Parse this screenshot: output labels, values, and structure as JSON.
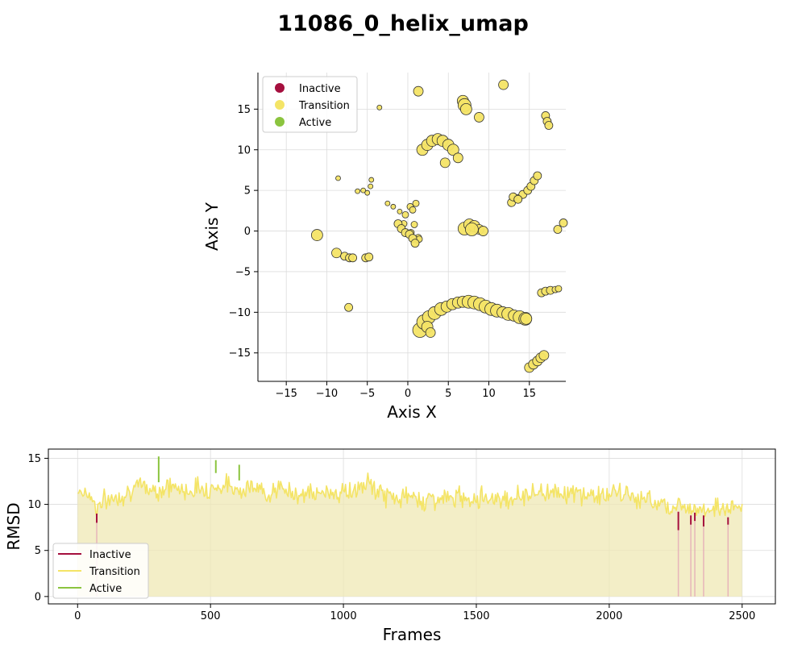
{
  "title": "11086_0_helix_umap",
  "colors": {
    "inactive": "#a50f3e",
    "transition": "#f4e466",
    "active": "#8bc43f",
    "fill": "#efe8b4",
    "point_edge": "#333333"
  },
  "chart_data": [
    {
      "type": "scatter",
      "title": "",
      "xlabel": "Axis X",
      "ylabel": "Axis Y",
      "xlim": [
        -18.5,
        19.5
      ],
      "ylim": [
        -18.5,
        19.5
      ],
      "xticks": [
        -15,
        -10,
        -5,
        0,
        5,
        10,
        15
      ],
      "yticks": [
        -15,
        -10,
        -5,
        0,
        5,
        10,
        15
      ],
      "grid": true,
      "legend": {
        "position": "top-left",
        "entries": [
          "Inactive",
          "Transition",
          "Active"
        ]
      },
      "clusters": [
        {
          "x": [
            1.5,
            2.0,
            2.6,
            3.3,
            4.1,
            4.8,
            5.5,
            6.2,
            6.8,
            7.5,
            8.2,
            8.9,
            9.6,
            10.3,
            11.0,
            11.7,
            12.4,
            13.1,
            13.8,
            14.5,
            2.4,
            2.8
          ],
          "y": [
            -12.2,
            -11.2,
            -10.6,
            -10.1,
            -9.6,
            -9.3,
            -9.0,
            -8.8,
            -8.7,
            -8.7,
            -8.8,
            -9.0,
            -9.3,
            -9.6,
            -9.8,
            -10.0,
            -10.2,
            -10.4,
            -10.6,
            -10.8,
            -11.8,
            -12.5
          ],
          "s": [
            9,
            9,
            8,
            8,
            8,
            7,
            7,
            7,
            7,
            8,
            8,
            8,
            8,
            8,
            8,
            7,
            8,
            7,
            8,
            8,
            7,
            6
          ]
        },
        {
          "x": [
            1.8,
            2.4,
            3.0,
            3.7,
            4.3,
            5.0,
            5.6,
            6.2,
            4.6
          ],
          "y": [
            10.0,
            10.6,
            11.1,
            11.3,
            11.1,
            10.6,
            10.0,
            9.0,
            8.4
          ],
          "s": [
            7,
            7,
            7,
            7,
            7,
            7,
            7,
            6,
            6
          ]
        },
        {
          "x": [
            6.8,
            7.0,
            7.2,
            8.8,
            1.3,
            11.8
          ],
          "y": [
            16.0,
            15.5,
            15.0,
            14.0,
            17.2,
            18.0
          ],
          "s": [
            7,
            8,
            7,
            6,
            6,
            6
          ]
        },
        {
          "x": [
            17.0,
            17.2,
            17.4
          ],
          "y": [
            14.2,
            13.5,
            13.0
          ],
          "s": [
            5,
            5,
            5
          ]
        },
        {
          "x": [
            12.8,
            13.5,
            14.2,
            14.8,
            15.2,
            15.6,
            16.0,
            13.0,
            13.6
          ],
          "y": [
            3.5,
            4.0,
            4.5,
            5.0,
            5.5,
            6.2,
            6.8,
            4.2,
            3.9
          ],
          "s": [
            5,
            5,
            5,
            5,
            5,
            5,
            5,
            5,
            5
          ]
        },
        {
          "x": [
            7.0,
            7.6,
            8.2,
            8.8,
            9.3,
            7.9
          ],
          "y": [
            0.3,
            0.8,
            0.6,
            0.2,
            0.0,
            0.2
          ],
          "s": [
            8,
            7,
            7,
            6,
            6,
            8
          ]
        },
        {
          "x": [
            18.5,
            19.2
          ],
          "y": [
            0.2,
            1.0
          ],
          "s": [
            5,
            5
          ]
        },
        {
          "x": [
            -11.2,
            -8.8,
            -7.8,
            -7.2,
            -6.8,
            -5.2,
            -4.8,
            -7.3
          ],
          "y": [
            -0.5,
            -2.7,
            -3.1,
            -3.3,
            -3.3,
            -3.3,
            -3.2,
            -9.4
          ],
          "s": [
            7,
            6,
            5,
            5,
            5,
            5,
            5,
            5
          ]
        },
        {
          "x": [
            -8.6,
            -6.2,
            -5.5,
            -5.0,
            -4.6,
            -4.5,
            -3.5
          ],
          "y": [
            6.5,
            4.9,
            5.0,
            4.7,
            5.5,
            6.3,
            15.2
          ],
          "s": [
            3,
            3,
            3,
            3,
            3,
            3,
            3
          ]
        },
        {
          "x": [
            -2.5,
            -1.8,
            -1.0,
            -0.3,
            0.3,
            1.0,
            0.6,
            -0.5,
            0.8,
            1.3,
            1.2,
            0.4,
            1.4
          ],
          "y": [
            3.4,
            3.0,
            2.4,
            2.0,
            3.0,
            3.4,
            2.6,
            0.9,
            0.8,
            -0.8,
            -1.1,
            -0.2,
            -1.0
          ],
          "s": [
            3,
            3,
            3,
            4,
            4,
            4,
            4,
            4,
            4,
            4,
            4,
            4,
            4
          ]
        },
        {
          "x": [
            -1.2,
            -0.8,
            -0.3,
            0.2,
            0.6,
            0.9
          ],
          "y": [
            0.9,
            0.3,
            -0.2,
            -0.4,
            -0.9,
            -1.5
          ],
          "s": [
            5,
            5,
            5,
            5,
            5,
            5
          ]
        },
        {
          "x": [
            14.6,
            15.0,
            15.5,
            16.0,
            16.4,
            16.8
          ],
          "y": [
            -10.8,
            -16.8,
            -16.4,
            -16.0,
            -15.6,
            -15.3
          ],
          "s": [
            7,
            6,
            6,
            6,
            6,
            6
          ]
        },
        {
          "x": [
            16.5,
            17.0,
            17.6,
            18.2,
            18.6
          ],
          "y": [
            -7.6,
            -7.4,
            -7.3,
            -7.2,
            -7.1
          ],
          "s": [
            5,
            5,
            5,
            4,
            4
          ]
        }
      ]
    },
    {
      "type": "line",
      "title": "",
      "xlabel": "Frames",
      "ylabel": "RMSD",
      "xlim": [
        -110,
        2625
      ],
      "ylim": [
        -0.8,
        16.0
      ],
      "xticks": [
        0,
        500,
        1000,
        1500,
        2000,
        2500
      ],
      "yticks": [
        0,
        5,
        10,
        15
      ],
      "grid": true,
      "legend": {
        "position": "bottom-left",
        "entries": [
          "Inactive",
          "Transition",
          "Active"
        ]
      },
      "n_frames": 2500,
      "profile": [
        [
          0,
          11.6
        ],
        [
          50,
          11.0
        ],
        [
          70,
          9.6
        ],
        [
          100,
          10.3
        ],
        [
          150,
          10.8
        ],
        [
          200,
          11.6
        ],
        [
          250,
          11.9
        ],
        [
          300,
          11.5
        ],
        [
          350,
          12.0
        ],
        [
          400,
          11.4
        ],
        [
          450,
          11.8
        ],
        [
          500,
          11.7
        ],
        [
          550,
          12.1
        ],
        [
          600,
          11.7
        ],
        [
          650,
          11.9
        ],
        [
          700,
          11.3
        ],
        [
          750,
          11.6
        ],
        [
          800,
          11.3
        ],
        [
          850,
          11.2
        ],
        [
          900,
          11.0
        ],
        [
          950,
          11.4
        ],
        [
          1000,
          11.2
        ],
        [
          1050,
          11.6
        ],
        [
          1100,
          12.2
        ],
        [
          1150,
          11.0
        ],
        [
          1200,
          10.7
        ],
        [
          1250,
          10.8
        ],
        [
          1300,
          10.5
        ],
        [
          1350,
          10.6
        ],
        [
          1400,
          10.6
        ],
        [
          1450,
          10.8
        ],
        [
          1500,
          10.7
        ],
        [
          1550,
          10.8
        ],
        [
          1600,
          10.6
        ],
        [
          1650,
          10.8
        ],
        [
          1700,
          11.2
        ],
        [
          1750,
          11.3
        ],
        [
          1800,
          11.5
        ],
        [
          1850,
          11.2
        ],
        [
          1900,
          11.0
        ],
        [
          1950,
          11.0
        ],
        [
          2000,
          11.0
        ],
        [
          2050,
          11.2
        ],
        [
          2100,
          10.7
        ],
        [
          2150,
          10.4
        ],
        [
          2200,
          10.2
        ],
        [
          2250,
          9.6
        ],
        [
          2300,
          9.9
        ],
        [
          2350,
          9.5
        ],
        [
          2400,
          9.7
        ],
        [
          2450,
          9.4
        ],
        [
          2500,
          9.7
        ]
      ],
      "spikes": [
        {
          "frame": 72,
          "low": 8.0,
          "high": 9.0,
          "state": "Inactive"
        },
        {
          "frame": 2260,
          "low": 7.2,
          "high": 9.2,
          "state": "Inactive"
        },
        {
          "frame": 2307,
          "low": 7.8,
          "high": 8.8,
          "state": "Inactive"
        },
        {
          "frame": 2322,
          "low": 8.2,
          "high": 9.1,
          "state": "Inactive"
        },
        {
          "frame": 2355,
          "low": 7.6,
          "high": 8.8,
          "state": "Inactive"
        },
        {
          "frame": 2447,
          "low": 7.8,
          "high": 8.6,
          "state": "Inactive"
        },
        {
          "frame": 305,
          "low": 12.4,
          "high": 15.2,
          "state": "Active"
        },
        {
          "frame": 520,
          "low": 13.4,
          "high": 14.8,
          "state": "Active"
        },
        {
          "frame": 608,
          "low": 12.6,
          "high": 14.3,
          "state": "Active"
        }
      ]
    }
  ]
}
